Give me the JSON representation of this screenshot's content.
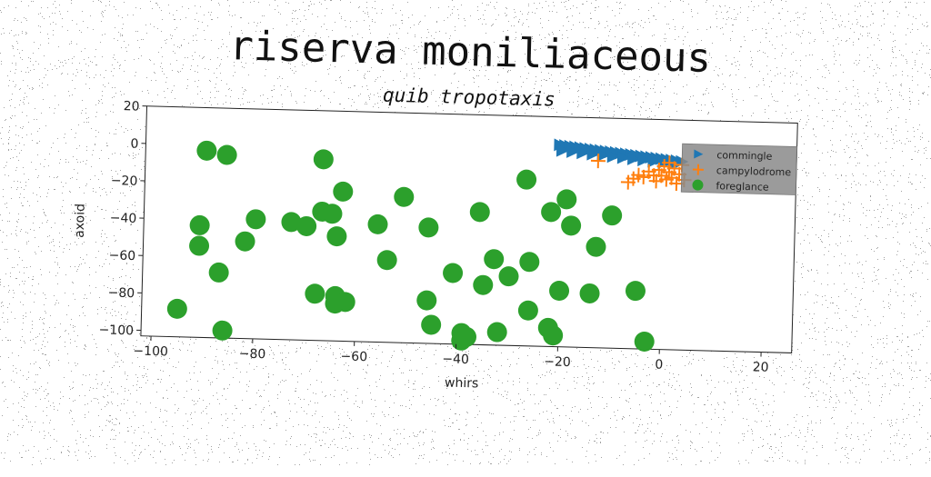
{
  "chart_data": {
    "type": "scatter",
    "title": "riserva moniliaceous",
    "subtitle": "quib tropotaxis",
    "xlabel": "whirs",
    "ylabel": "axoid",
    "xlim": [
      -102,
      26
    ],
    "ylim": [
      -103,
      20
    ],
    "xticks": [
      -100,
      -80,
      -60,
      -40,
      -20,
      0,
      20
    ],
    "yticks": [
      20,
      0,
      -20,
      -40,
      -60,
      -80,
      -100
    ],
    "grid": false,
    "legend_position": "top-right",
    "series": [
      {
        "name": "commingle",
        "marker": "triangle-right",
        "color": "#1f77b4",
        "x": [
          -20.5,
          -19.5,
          -18.5,
          -17.5,
          -16.5,
          -15.5,
          -14.5,
          -13.5,
          -12.5,
          -11.5,
          -10.5,
          -9.5,
          -8.5,
          -7.5,
          -6.5,
          -5.5,
          -4.5,
          -3.5,
          -2.5,
          -1.5,
          -0.5,
          0.5,
          1.5,
          2.5,
          3.5,
          -20,
          -18,
          -16,
          -14,
          -12,
          -10,
          -8,
          -6,
          -4,
          -2,
          0,
          2
        ],
        "y": [
          5,
          4.7,
          4.4,
          4.1,
          3.8,
          3.5,
          3.2,
          2.9,
          2.6,
          2.3,
          2.0,
          1.7,
          1.4,
          1.1,
          0.8,
          0.5,
          0.2,
          -0.1,
          -0.4,
          -0.7,
          -1.0,
          -1.3,
          -1.6,
          -1.9,
          -2.2,
          2,
          1.5,
          1,
          0.5,
          0,
          -0.5,
          -1,
          -1.5,
          -2,
          -2.5,
          -3,
          -3.5
        ]
      },
      {
        "name": "campylodrome",
        "marker": "plus",
        "color": "#ff7f0e",
        "x": [
          -13,
          -7,
          -6,
          -5,
          -4,
          -3,
          -2,
          -1.5,
          -1,
          -0.5,
          0,
          0.5,
          1,
          1,
          1.5,
          2,
          2.5,
          3,
          3.5,
          4
        ],
        "y": [
          -3,
          -14,
          -12,
          -10,
          -11,
          -8,
          -10,
          -13,
          -7,
          -10,
          -5,
          -12,
          -8,
          -3,
          -11,
          -6,
          -14,
          -9,
          -4,
          -12
        ]
      },
      {
        "name": "foreglance",
        "marker": "circle",
        "color": "#2ca02c",
        "x": [
          -90,
          -86,
          -67,
          -63,
          -51,
          -91,
          -91,
          -87,
          -82,
          -80,
          -73,
          -70,
          -67,
          -65,
          -64,
          -56,
          -54,
          -46,
          -41,
          -36,
          -35,
          -30,
          -33,
          -26,
          -27,
          -22,
          -19,
          -18,
          -13,
          -10,
          -64,
          -62,
          -46,
          -45,
          -39,
          -39,
          -38,
          -32,
          -26,
          -22,
          -14,
          -5,
          -95,
          -86,
          -64,
          -68,
          -3,
          -21,
          -20
        ],
        "y": [
          -3,
          -5,
          -6,
          -23,
          -25,
          -43,
          -54,
          -68,
          -51,
          -39,
          -40,
          -42,
          -34,
          -35,
          -47,
          -40,
          -59,
          -41,
          -65,
          -32,
          -71,
          -66,
          -57,
          -58,
          -14,
          -31,
          -24,
          -38,
          -49,
          -32,
          -79,
          -82,
          -80,
          -93,
          -97,
          -101,
          -99,
          -96,
          -84,
          -93,
          -74,
          -72,
          -88,
          -99,
          -83,
          -78,
          -99,
          -97,
          -73
        ]
      }
    ]
  }
}
